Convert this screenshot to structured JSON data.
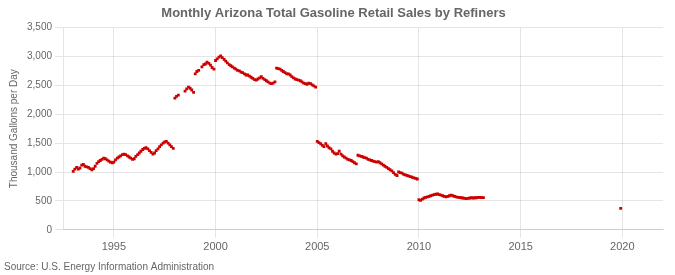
{
  "chart_data": {
    "type": "scatter",
    "title": "Monthly Arizona Total Gasoline Retail Sales by Refiners",
    "ylabel": "Thousand Gallons per Day",
    "annotations": [
      "Source: U.S. Energy Information Administration"
    ],
    "color": "#cc0000",
    "marker": "square",
    "grid": true,
    "xlim": [
      1992.5,
      2022.0
    ],
    "xticks": [
      1995,
      2000,
      2005,
      2010,
      2015,
      2020
    ],
    "ylim": [
      0,
      3500
    ],
    "yticks": [
      0,
      500,
      {
        "value": 1000,
        "label": "1,000"
      },
      {
        "value": 1500,
        "label": "1,500"
      },
      {
        "value": 2000,
        "label": "2,000"
      },
      {
        "value": 2500,
        "label": "2,500"
      },
      {
        "value": 3000,
        "label": "3,000"
      },
      {
        "value": 3500,
        "label": "3,500"
      }
    ],
    "x": [
      1993.0,
      1993.08,
      1993.17,
      1993.25,
      1993.33,
      1993.42,
      1993.5,
      1993.58,
      1993.67,
      1993.75,
      1993.83,
      1993.92,
      1994.0,
      1994.08,
      1994.17,
      1994.25,
      1994.33,
      1994.42,
      1994.5,
      1994.58,
      1994.67,
      1994.75,
      1994.83,
      1994.92,
      1995.0,
      1995.08,
      1995.17,
      1995.25,
      1995.33,
      1995.42,
      1995.5,
      1995.58,
      1995.67,
      1995.75,
      1995.83,
      1995.92,
      1996.0,
      1996.08,
      1996.17,
      1996.25,
      1996.33,
      1996.42,
      1996.5,
      1996.58,
      1996.67,
      1996.75,
      1996.83,
      1996.92,
      1997.0,
      1997.08,
      1997.17,
      1997.25,
      1997.33,
      1997.42,
      1997.5,
      1997.58,
      1997.67,
      1997.75,
      1997.83,
      1997.92,
      1998.0,
      1998.08,
      1998.17,
      1998.5,
      1998.58,
      1998.67,
      1998.75,
      1998.83,
      1998.92,
      1999.0,
      1999.08,
      1999.17,
      1999.33,
      1999.42,
      1999.5,
      1999.58,
      1999.67,
      1999.75,
      1999.83,
      1999.92,
      2000.0,
      2000.08,
      2000.17,
      2000.25,
      2000.33,
      2000.42,
      2000.5,
      2000.58,
      2000.67,
      2000.75,
      2000.83,
      2000.92,
      2001.0,
      2001.08,
      2001.17,
      2001.25,
      2001.33,
      2001.42,
      2001.5,
      2001.58,
      2001.67,
      2001.75,
      2001.83,
      2001.92,
      2002.0,
      2002.08,
      2002.17,
      2002.25,
      2002.33,
      2002.42,
      2002.5,
      2002.58,
      2002.67,
      2002.75,
      2002.83,
      2002.92,
      2003.0,
      2003.08,
      2003.17,
      2003.25,
      2003.33,
      2003.42,
      2003.5,
      2003.58,
      2003.67,
      2003.75,
      2003.83,
      2003.92,
      2004.0,
      2004.08,
      2004.17,
      2004.25,
      2004.33,
      2004.42,
      2004.5,
      2004.58,
      2004.67,
      2004.75,
      2004.83,
      2004.92,
      2005.0,
      2005.08,
      2005.17,
      2005.25,
      2005.33,
      2005.42,
      2005.5,
      2005.58,
      2005.67,
      2005.75,
      2005.83,
      2005.92,
      2006.0,
      2006.08,
      2006.17,
      2006.25,
      2006.33,
      2006.42,
      2006.5,
      2006.58,
      2006.67,
      2006.75,
      2006.83,
      2006.92,
      2007.0,
      2007.08,
      2007.17,
      2007.25,
      2007.33,
      2007.42,
      2007.5,
      2007.58,
      2007.67,
      2007.75,
      2007.83,
      2007.92,
      2008.0,
      2008.08,
      2008.17,
      2008.25,
      2008.33,
      2008.42,
      2008.5,
      2008.58,
      2008.67,
      2008.75,
      2008.83,
      2008.92,
      2009.0,
      2009.08,
      2009.17,
      2009.25,
      2009.33,
      2009.42,
      2009.5,
      2009.58,
      2009.67,
      2009.75,
      2009.83,
      2009.92,
      2010.0,
      2010.08,
      2010.17,
      2010.25,
      2010.33,
      2010.42,
      2010.5,
      2010.58,
      2010.67,
      2010.75,
      2010.83,
      2010.92,
      2011.0,
      2011.08,
      2011.17,
      2011.25,
      2011.33,
      2011.42,
      2011.5,
      2011.58,
      2011.67,
      2011.75,
      2011.83,
      2011.92,
      2012.0,
      2012.08,
      2012.17,
      2012.25,
      2012.33,
      2012.42,
      2012.5,
      2012.58,
      2012.67,
      2012.75,
      2012.83,
      2012.92,
      2013.0,
      2013.08,
      2013.17,
      2019.92
    ],
    "values": [
      1010,
      1050,
      1080,
      1050,
      1070,
      1120,
      1130,
      1100,
      1090,
      1080,
      1060,
      1040,
      1060,
      1100,
      1150,
      1180,
      1200,
      1220,
      1240,
      1230,
      1210,
      1190,
      1170,
      1160,
      1170,
      1210,
      1240,
      1260,
      1280,
      1300,
      1310,
      1300,
      1280,
      1260,
      1240,
      1220,
      1230,
      1270,
      1300,
      1330,
      1360,
      1390,
      1410,
      1420,
      1400,
      1370,
      1340,
      1310,
      1330,
      1370,
      1400,
      1440,
      1470,
      1500,
      1520,
      1530,
      1500,
      1470,
      1440,
      1410,
      2280,
      2310,
      2330,
      2400,
      2440,
      2470,
      2450,
      2420,
      2380,
      2700,
      2740,
      2760,
      2820,
      2860,
      2870,
      2900,
      2880,
      2850,
      2810,
      2780,
      2930,
      2960,
      2990,
      3010,
      2980,
      2950,
      2920,
      2890,
      2860,
      2840,
      2820,
      2800,
      2780,
      2760,
      2750,
      2730,
      2720,
      2700,
      2680,
      2680,
      2660,
      2640,
      2620,
      2600,
      2590,
      2610,
      2630,
      2650,
      2620,
      2600,
      2580,
      2560,
      2540,
      2530,
      2540,
      2560,
      2800,
      2790,
      2780,
      2760,
      2740,
      2720,
      2700,
      2700,
      2680,
      2650,
      2630,
      2610,
      2600,
      2590,
      2580,
      2560,
      2540,
      2530,
      2520,
      2540,
      2530,
      2510,
      2490,
      2470,
      1530,
      1510,
      1490,
      1460,
      1440,
      1490,
      1450,
      1420,
      1400,
      1360,
      1330,
      1310,
      1320,
      1360,
      1310,
      1280,
      1260,
      1240,
      1220,
      1210,
      1200,
      1180,
      1160,
      1140,
      1290,
      1280,
      1270,
      1260,
      1250,
      1240,
      1220,
      1210,
      1200,
      1190,
      1180,
      1170,
      1180,
      1160,
      1140,
      1120,
      1100,
      1080,
      1060,
      1040,
      1020,
      990,
      960,
      940,
      1000,
      990,
      980,
      960,
      950,
      940,
      930,
      920,
      910,
      900,
      890,
      880,
      520,
      510,
      530,
      550,
      560,
      570,
      580,
      590,
      600,
      610,
      615,
      620,
      610,
      600,
      590,
      580,
      570,
      580,
      590,
      600,
      590,
      580,
      570,
      560,
      560,
      555,
      550,
      545,
      540,
      545,
      550,
      555,
      550,
      555,
      555,
      560,
      560,
      558,
      556,
      370
    ]
  }
}
